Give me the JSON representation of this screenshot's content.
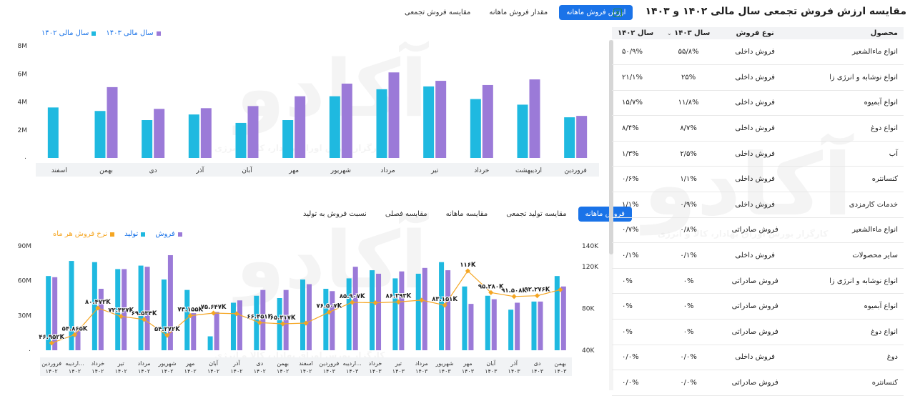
{
  "top_tabs": [
    {
      "label": "ارزش فروش ماهانه",
      "active": true
    },
    {
      "label": "مقدار فروش ماهانه",
      "active": false
    },
    {
      "label": "مقایسه فروش تجمعی",
      "active": false
    }
  ],
  "bottom_tabs": [
    {
      "label": "فروش ماهانه",
      "active": true
    },
    {
      "label": "مقایسه تولید تجمعی",
      "active": false
    },
    {
      "label": "مقایسه ماهانه",
      "active": false
    },
    {
      "label": "مقایسه فصلی",
      "active": false
    },
    {
      "label": "نسبت فروش به تولید",
      "active": false
    }
  ],
  "watermark": {
    "logo_text": "آکادو",
    "tagline": "کارگزار بورس اوراق بهادار، کالا و انرژی"
  },
  "colors": {
    "cyan": "#1fb9e0",
    "purple": "#9b7ad8",
    "orange": "#f5a623",
    "accent": "#1a73e8"
  },
  "chart_data": [
    {
      "type": "bar",
      "legend": [
        {
          "name": "سال مالی ۱۴۰۳",
          "color": "#9b7ad8"
        },
        {
          "name": "سال مالی ۱۴۰۲",
          "color": "#1fb9e0"
        }
      ],
      "categories": [
        "فروردین",
        "اردیبهشت",
        "خرداد",
        "تیر",
        "مرداد",
        "شهریور",
        "مهر",
        "آبان",
        "آذر",
        "دی",
        "بهمن",
        "اسفند"
      ],
      "series": [
        {
          "name": "سال مالی ۱۴۰۲",
          "values": [
            2.9,
            3.8,
            4.2,
            5.1,
            4.9,
            4.4,
            2.7,
            2.5,
            3.1,
            2.7,
            3.35,
            3.6
          ]
        },
        {
          "name": "سال مالی ۱۴۰۳",
          "values": [
            3.0,
            5.6,
            5.2,
            5.5,
            6.1,
            5.3,
            4.4,
            3.7,
            3.55,
            3.5,
            5.05,
            null
          ]
        }
      ],
      "yticks": [
        "۰",
        "2M",
        "4M",
        "6M",
        "8M"
      ],
      "ylim": [
        0,
        8
      ],
      "grid": false,
      "legend_position": "top-left"
    },
    {
      "type": "bar+line",
      "legend": [
        {
          "name": "فروش",
          "color": "#9b7ad8"
        },
        {
          "name": "تولید",
          "color": "#1fb9e0"
        },
        {
          "name": "نرخ فروش هر ماه",
          "color": "#f5a623"
        }
      ],
      "categories": [
        [
          "فروردین",
          "۱۴۰۲"
        ],
        [
          "اردیبه...",
          "۱۴۰۲"
        ],
        [
          "خرداد",
          "۱۴۰۲"
        ],
        [
          "تیر",
          "۱۴۰۲"
        ],
        [
          "مرداد",
          "۱۴۰۲"
        ],
        [
          "شهریور",
          "۱۴۰۲"
        ],
        [
          "مهر",
          "۱۴۰۲"
        ],
        [
          "آبان",
          "۱۴۰۲"
        ],
        [
          "آذر",
          "۱۴۰۲"
        ],
        [
          "دی",
          "۱۴۰۲"
        ],
        [
          "بهمن",
          "۱۴۰۲"
        ],
        [
          "اسفند",
          "۱۴۰۲"
        ],
        [
          "فروردین",
          "۱۴۰۳"
        ],
        [
          "اردیبه...",
          "۱۴۰۳"
        ],
        [
          "خرداد",
          "۱۴۰۳"
        ],
        [
          "تیر",
          "۱۴۰۳"
        ],
        [
          "مرداد",
          "۱۴۰۳"
        ],
        [
          "شهریور",
          "۱۴۰۳"
        ],
        [
          "مهر",
          "۱۴۰۳"
        ],
        [
          "آبان",
          "۱۴۰۳"
        ],
        [
          "آذر",
          "۱۴۰۳"
        ],
        [
          "دی",
          "۱۴۰۳"
        ],
        [
          "بهمن",
          "۱۴۰۳"
        ]
      ],
      "series": [
        {
          "name": "تولید",
          "axis": "left",
          "values": [
            6.4,
            7.7,
            7.6,
            7.0,
            7.3,
            6.1,
            5.2,
            1.2,
            4.1,
            4.7,
            4.5,
            6.1,
            5.3,
            6.2,
            6.9,
            6.2,
            6.6,
            7.6,
            5.5,
            4.7,
            3.5,
            4.2,
            6.4
          ]
        },
        {
          "name": "فروش",
          "axis": "left",
          "values": [
            6.3,
            2.0,
            5.3,
            7.0,
            7.2,
            8.2,
            3.2,
            3.3,
            4.3,
            5.2,
            5.2,
            5.7,
            5.1,
            7.2,
            6.6,
            6.8,
            7.1,
            6.9,
            4.0,
            4.4,
            4.1,
            4.2,
            5.5
          ]
        },
        {
          "name": "نرخ فروش هر ماه",
          "axis": "right",
          "values": [
            46.952,
            54.865,
            80.472,
            72.447,
            69.534,
            54.272,
            73.155,
            75.647,
            null,
            66.451,
            65.317,
            null,
            76.507,
            85.907,
            null,
            86.293,
            null,
            83.151,
            116,
            95.28,
            91.508,
            92.276,
            null
          ]
        },
        {
          "name": "نرخ فروش هر ماه (بدون برچسب)",
          "axis": "right",
          "values": [
            null,
            null,
            null,
            null,
            null,
            null,
            null,
            null,
            75.0,
            null,
            null,
            66.0,
            null,
            null,
            85.5,
            null,
            88.0,
            null,
            null,
            null,
            null,
            null,
            98.0
          ]
        }
      ],
      "data_labels": [
        "۴۶.۹۵۲K",
        "۵۴.۸۶۵K",
        "۸۰.۴۷۲K",
        "۷۲.۴۴۷K",
        "۶۹.۵۳۴K",
        "۵۴.۲۷۲K",
        "۷۳.۱۵۵K",
        "۷۵.۶۴۷K",
        "",
        "۶۶.۴۵۱K",
        "۶۵.۳۱۷K",
        "",
        "۷۶.۵۰۷K",
        "۸۵.۹۰۷K",
        "",
        "۸۶.۲۹۳K",
        "",
        "۸۳.۱۵۱K",
        "۱۱۶K",
        "۹۵.۲۸۰K",
        "۹۱.۵۰۸K",
        "۹۲.۲۷۶K",
        ""
      ],
      "yticks_left": [
        "۰",
        "30M",
        "60M",
        "90M"
      ],
      "ylim_left": [
        0,
        9
      ],
      "yticks_right": [
        "40K",
        "80K",
        "120K",
        "140K"
      ],
      "ylim_right": [
        40,
        140
      ],
      "legend_position": "top-left"
    }
  ],
  "table": {
    "title": "مقایسه ارزش فروش تجمعی سال مالی ۱۴۰۲ و ۱۴۰۳",
    "export_icon": "excel-icon",
    "headers": [
      "محصول",
      "نوع فروش",
      "سال ۱۴۰۳",
      "سال ۱۴۰۲"
    ],
    "sort_icon": "chevron-down-icon",
    "rows": [
      [
        "انواع ماءالشعیر",
        "فروش داخلی",
        "۵۵/۸%",
        "۵۰/۹%"
      ],
      [
        "انواع نوشابه و انرژی زا",
        "فروش داخلی",
        "۲۵%",
        "۲۱/۱%"
      ],
      [
        "انواع آبمیوه",
        "فروش داخلی",
        "۱۱/۸%",
        "۱۵/۷%"
      ],
      [
        "انواع دوغ",
        "فروش داخلی",
        "۸/۷%",
        "۸/۴%"
      ],
      [
        "آب",
        "فروش داخلی",
        "۲/۵%",
        "۱/۳%"
      ],
      [
        "کنسانتره",
        "فروش داخلی",
        "۱/۱%",
        "۰/۶%"
      ],
      [
        "خدمات کارمزدی",
        "فروش داخلی",
        "۰/۹%",
        "۱/۱%"
      ],
      [
        "انواع ماءالشعیر",
        "فروش صادراتی",
        "۰/۸%",
        "۰/۷%"
      ],
      [
        "سایر محصولات",
        "فروش داخلی",
        "۰/۱%",
        "۰/۱%"
      ],
      [
        "انواع نوشابه و انرژی زا",
        "فروش صادراتی",
        "۰%",
        "۰%"
      ],
      [
        "انواع آبمیوه",
        "فروش صادراتی",
        "۰%",
        "۰%"
      ],
      [
        "انواع دوغ",
        "فروش صادراتی",
        "۰%",
        "۰%"
      ],
      [
        "دوغ",
        "فروش داخلی",
        "۰/۰%",
        "۰/۰%"
      ],
      [
        "کنسانتره",
        "فروش صادراتی",
        "۰/۰%",
        "۰/۰%"
      ]
    ]
  }
}
